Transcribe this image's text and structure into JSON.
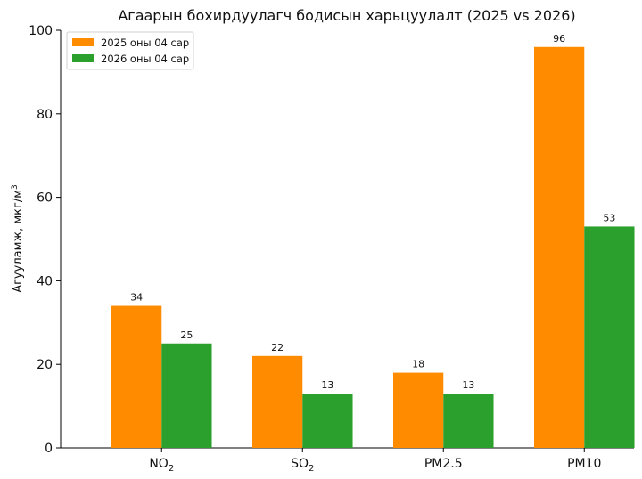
{
  "chart_data": {
    "type": "bar",
    "title": "Агаарын бохирдуулагч бодисын харьцуулалт (2025 vs 2026)",
    "xlabel": "",
    "ylabel": "Агууламж, мкг/м",
    "ylabel_sup": "3",
    "categories": [
      {
        "base": "NO",
        "sub": "2"
      },
      {
        "base": "SO",
        "sub": "2"
      },
      {
        "base": "PM2.5",
        "sub": ""
      },
      {
        "base": "PM10",
        "sub": ""
      }
    ],
    "series": [
      {
        "name": "2025 оны 04 сар",
        "color": "#ff8c00",
        "values": [
          34,
          22,
          18,
          96
        ]
      },
      {
        "name": "2026 оны 04 сар",
        "color": "#2ca02c",
        "values": [
          25,
          13,
          13,
          53
        ]
      }
    ],
    "ylim": [
      0,
      100
    ],
    "yticks": [
      "0",
      "20",
      "40",
      "60",
      "80",
      "100"
    ],
    "legend_position": "top-left",
    "grid": false
  }
}
